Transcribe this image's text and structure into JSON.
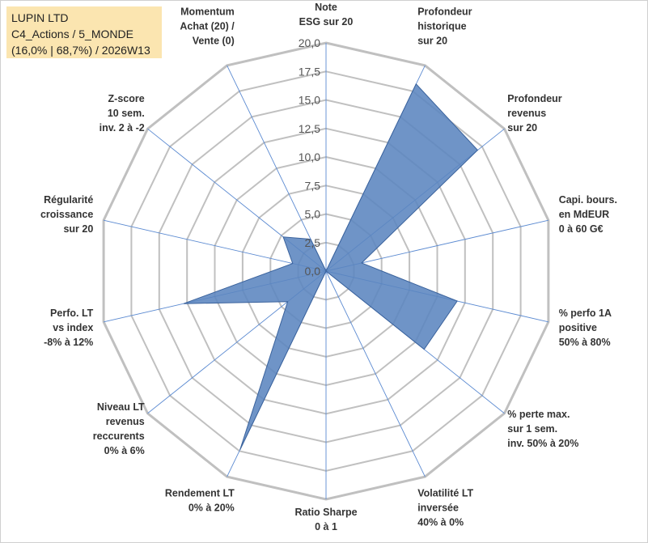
{
  "chart_data": {
    "type": "radar",
    "title_lines": [
      "LUPIN LTD",
      "C4_Actions / 5_MONDE",
      "(16,0% | 68,7%) / 2026W13"
    ],
    "rlim": [
      0,
      20
    ],
    "ticks": [
      "0,0",
      "2,5",
      "5,0",
      "7,5",
      "10,0",
      "12,5",
      "15,0",
      "17,5",
      "20,0"
    ],
    "axes": [
      {
        "label": [
          "Note",
          "ESG sur 20"
        ],
        "value": 0
      },
      {
        "label": [
          "Profondeur",
          "historique",
          "sur 20"
        ],
        "value": 18.2
      },
      {
        "label": [
          "Profondeur",
          "revenus",
          "sur 20"
        ],
        "value": 17.0
      },
      {
        "label": [
          "Capi. bours.",
          "en MdEUR",
          "0 à 60 G€"
        ],
        "value": 3.2
      },
      {
        "label": [
          "% perfo 1A",
          "positive",
          "50% à 80%"
        ],
        "value": 11.8
      },
      {
        "label": [
          "% perte max.",
          "sur 1 sem.",
          "inv. 50% à 20%"
        ],
        "value": 11.0
      },
      {
        "label": [
          "Volatilité LT",
          "inversée",
          "40% à 0%"
        ],
        "value": 0
      },
      {
        "label": [
          "Ratio Sharpe",
          "0 à 1"
        ],
        "value": 0
      },
      {
        "label": [
          "Rendement LT",
          "0% à 20%"
        ],
        "value": 17.4
      },
      {
        "label": [
          "Niveau LT",
          "revenus",
          "reccurents",
          "0% à 6%"
        ],
        "value": 4.3
      },
      {
        "label": [
          "Perfo. LT",
          "vs index",
          "-8% à 12%"
        ],
        "value": 12.8
      },
      {
        "label": [
          "Régularité",
          "croissance",
          "sur 20"
        ],
        "value": 3.0
      },
      {
        "label": [
          "Z-score",
          "10 sem.",
          "inv. 2 à -2"
        ],
        "value": 4.8
      },
      {
        "label": [
          "Momentum",
          "Achat (20) /",
          "Vente (0)"
        ],
        "value": 3.1
      }
    ],
    "series_color": "#5b85bf",
    "series_edge": "#3a629c",
    "grid_color": "#c0c0c0",
    "spoke_color": "#5b8ad1"
  }
}
